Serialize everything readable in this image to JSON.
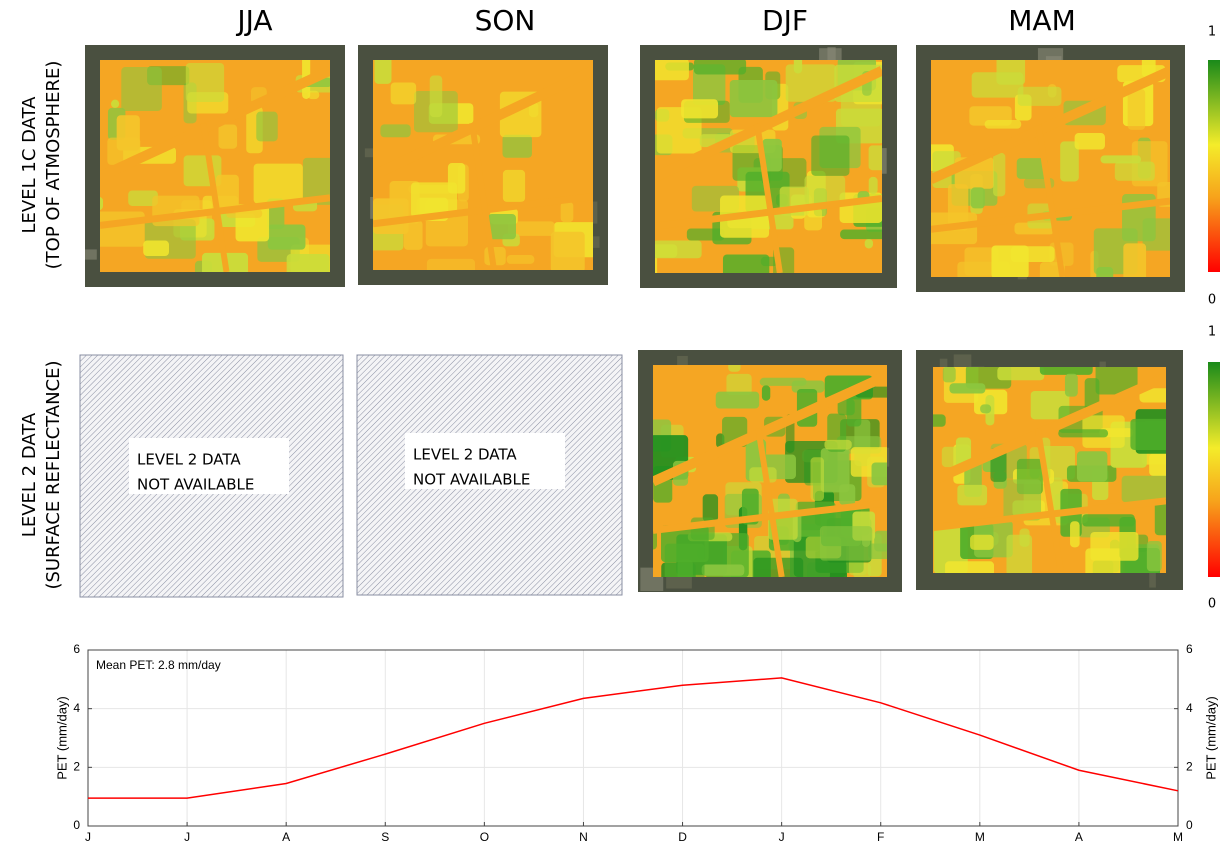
{
  "columns": [
    "JJA",
    "SON",
    "DJF",
    "MAM"
  ],
  "rows": [
    [
      "LEVEL 1C DATA",
      "(TOP OF ATMOSPHERE)"
    ],
    [
      "LEVEL 2 DATA",
      "(SURFACE REFLECTANCE)"
    ]
  ],
  "unavailable_note": [
    "LEVEL 2 DATA",
    "NOT AVAILABLE"
  ],
  "colorbars": [
    {
      "max": 1,
      "min": 0
    },
    {
      "max": 1,
      "min": 0
    }
  ],
  "chart_data": {
    "type": "line",
    "annotation": "Mean PET: 2.8 mm/day",
    "categories": [
      "J",
      "J",
      "A",
      "S",
      "O",
      "N",
      "D",
      "J",
      "F",
      "M",
      "A",
      "M"
    ],
    "values": [
      0.95,
      0.95,
      1.45,
      2.45,
      3.5,
      4.35,
      4.8,
      5.05,
      4.2,
      3.1,
      1.9,
      1.2
    ],
    "color": "#ff0000",
    "ylabel": "PET (mm/day)",
    "y2label": "PET (mm/day)",
    "ylim": [
      0,
      6
    ],
    "yticks": [
      0,
      2,
      4,
      6
    ],
    "y2lim": [
      0,
      6
    ],
    "y2ticks": [
      0,
      2,
      4,
      6
    ],
    "grid": true
  }
}
